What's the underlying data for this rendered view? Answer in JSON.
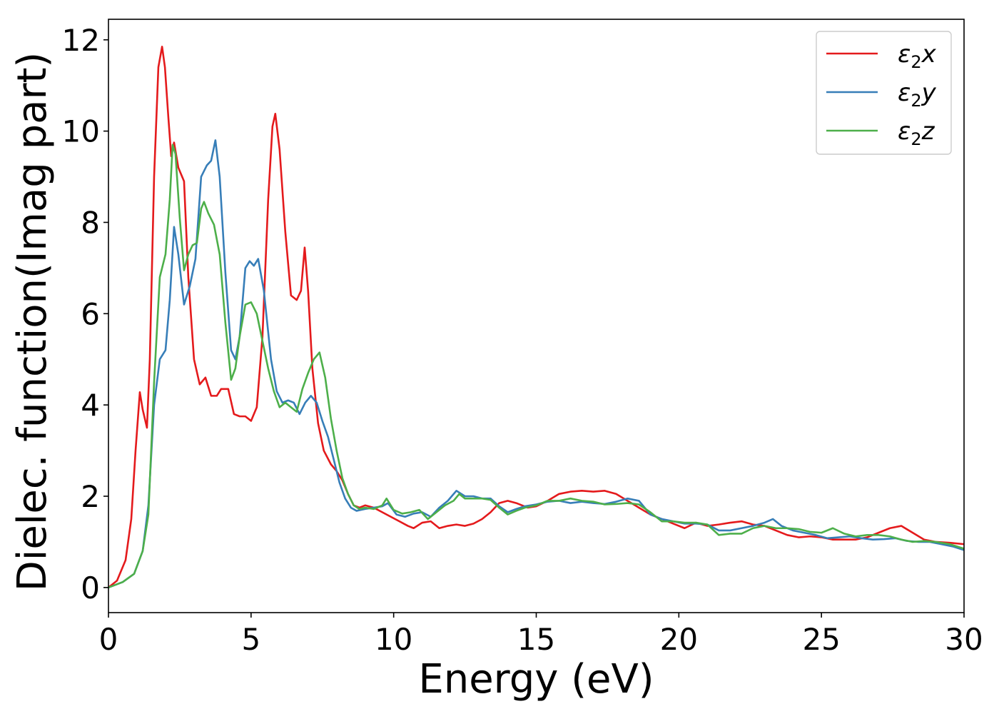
{
  "chart_data": {
    "type": "line",
    "xlabel": "Energy (eV)",
    "ylabel": "Dielec. function(Imag part)",
    "xlim": [
      0,
      30
    ],
    "ylim": [
      -0.55,
      12.45
    ],
    "xticks": [
      0,
      5,
      10,
      15,
      20,
      25,
      30
    ],
    "yticks": [
      0,
      2,
      4,
      6,
      8,
      10,
      12
    ],
    "grid": false,
    "legend_position": "top-right",
    "series": [
      {
        "name": "ε₂x",
        "legend": {
          "symbol": "ε",
          "sub": "2",
          "var": "x"
        },
        "color": "#e41a1c",
        "points": [
          [
            0,
            0
          ],
          [
            0.3,
            0.15
          ],
          [
            0.6,
            0.6
          ],
          [
            0.8,
            1.5
          ],
          [
            0.95,
            3.0
          ],
          [
            1.1,
            4.28
          ],
          [
            1.2,
            3.9
          ],
          [
            1.35,
            3.5
          ],
          [
            1.45,
            5.0
          ],
          [
            1.6,
            9.0
          ],
          [
            1.75,
            11.4
          ],
          [
            1.88,
            11.85
          ],
          [
            1.98,
            11.4
          ],
          [
            2.1,
            10.3
          ],
          [
            2.2,
            9.45
          ],
          [
            2.3,
            9.75
          ],
          [
            2.45,
            9.2
          ],
          [
            2.65,
            8.9
          ],
          [
            2.8,
            6.8
          ],
          [
            3.0,
            5.0
          ],
          [
            3.2,
            4.45
          ],
          [
            3.4,
            4.6
          ],
          [
            3.6,
            4.2
          ],
          [
            3.8,
            4.2
          ],
          [
            3.95,
            4.35
          ],
          [
            4.2,
            4.35
          ],
          [
            4.4,
            3.8
          ],
          [
            4.6,
            3.75
          ],
          [
            4.8,
            3.75
          ],
          [
            5.0,
            3.65
          ],
          [
            5.2,
            3.95
          ],
          [
            5.4,
            5.5
          ],
          [
            5.6,
            8.5
          ],
          [
            5.75,
            10.1
          ],
          [
            5.85,
            10.38
          ],
          [
            6.0,
            9.6
          ],
          [
            6.2,
            7.8
          ],
          [
            6.4,
            6.4
          ],
          [
            6.6,
            6.3
          ],
          [
            6.75,
            6.5
          ],
          [
            6.88,
            7.45
          ],
          [
            7.0,
            6.5
          ],
          [
            7.15,
            4.8
          ],
          [
            7.35,
            3.6
          ],
          [
            7.55,
            3.0
          ],
          [
            7.8,
            2.7
          ],
          [
            8.0,
            2.55
          ],
          [
            8.2,
            2.35
          ],
          [
            8.4,
            2.05
          ],
          [
            8.6,
            1.8
          ],
          [
            8.8,
            1.75
          ],
          [
            9.0,
            1.8
          ],
          [
            9.3,
            1.75
          ],
          [
            9.6,
            1.65
          ],
          [
            9.9,
            1.55
          ],
          [
            10.2,
            1.45
          ],
          [
            10.5,
            1.35
          ],
          [
            10.7,
            1.3
          ],
          [
            11.0,
            1.42
          ],
          [
            11.3,
            1.45
          ],
          [
            11.6,
            1.3
          ],
          [
            11.9,
            1.35
          ],
          [
            12.2,
            1.38
          ],
          [
            12.5,
            1.35
          ],
          [
            12.8,
            1.4
          ],
          [
            13.1,
            1.5
          ],
          [
            13.4,
            1.65
          ],
          [
            13.7,
            1.85
          ],
          [
            14.0,
            1.9
          ],
          [
            14.3,
            1.85
          ],
          [
            14.7,
            1.75
          ],
          [
            15.0,
            1.78
          ],
          [
            15.4,
            1.9
          ],
          [
            15.8,
            2.05
          ],
          [
            16.2,
            2.1
          ],
          [
            16.6,
            2.12
          ],
          [
            17.0,
            2.1
          ],
          [
            17.4,
            2.12
          ],
          [
            17.8,
            2.05
          ],
          [
            18.2,
            1.9
          ],
          [
            18.6,
            1.75
          ],
          [
            19.0,
            1.6
          ],
          [
            19.4,
            1.5
          ],
          [
            19.8,
            1.4
          ],
          [
            20.2,
            1.3
          ],
          [
            20.6,
            1.42
          ],
          [
            21.0,
            1.35
          ],
          [
            21.4,
            1.38
          ],
          [
            21.8,
            1.42
          ],
          [
            22.2,
            1.45
          ],
          [
            22.6,
            1.38
          ],
          [
            23.0,
            1.35
          ],
          [
            23.4,
            1.25
          ],
          [
            23.8,
            1.15
          ],
          [
            24.2,
            1.1
          ],
          [
            24.6,
            1.12
          ],
          [
            25.0,
            1.1
          ],
          [
            25.4,
            1.05
          ],
          [
            25.8,
            1.05
          ],
          [
            26.2,
            1.05
          ],
          [
            26.6,
            1.1
          ],
          [
            27.0,
            1.2
          ],
          [
            27.4,
            1.3
          ],
          [
            27.8,
            1.35
          ],
          [
            28.2,
            1.2
          ],
          [
            28.6,
            1.05
          ],
          [
            29.0,
            1.0
          ],
          [
            29.5,
            0.98
          ],
          [
            30.0,
            0.95
          ]
        ]
      },
      {
        "name": "ε₂y",
        "legend": {
          "symbol": "ε",
          "sub": "2",
          "var": "y"
        },
        "color": "#377eb8",
        "points": [
          [
            0,
            0
          ],
          [
            0.5,
            0.12
          ],
          [
            0.9,
            0.3
          ],
          [
            1.2,
            0.8
          ],
          [
            1.4,
            1.8
          ],
          [
            1.6,
            4.0
          ],
          [
            1.8,
            5.0
          ],
          [
            2.0,
            5.2
          ],
          [
            2.15,
            6.3
          ],
          [
            2.3,
            7.9
          ],
          [
            2.45,
            7.3
          ],
          [
            2.65,
            6.2
          ],
          [
            2.85,
            6.6
          ],
          [
            3.05,
            7.2
          ],
          [
            3.25,
            9.0
          ],
          [
            3.45,
            9.25
          ],
          [
            3.6,
            9.35
          ],
          [
            3.75,
            9.8
          ],
          [
            3.9,
            9.0
          ],
          [
            4.1,
            6.9
          ],
          [
            4.3,
            5.2
          ],
          [
            4.45,
            5.0
          ],
          [
            4.6,
            5.5
          ],
          [
            4.8,
            7.0
          ],
          [
            4.95,
            7.15
          ],
          [
            5.1,
            7.05
          ],
          [
            5.25,
            7.2
          ],
          [
            5.45,
            6.5
          ],
          [
            5.7,
            5.0
          ],
          [
            5.9,
            4.3
          ],
          [
            6.1,
            4.05
          ],
          [
            6.3,
            4.1
          ],
          [
            6.5,
            4.05
          ],
          [
            6.7,
            3.8
          ],
          [
            6.9,
            4.05
          ],
          [
            7.1,
            4.2
          ],
          [
            7.3,
            4.05
          ],
          [
            7.5,
            3.65
          ],
          [
            7.7,
            3.3
          ],
          [
            7.9,
            2.8
          ],
          [
            8.1,
            2.3
          ],
          [
            8.3,
            1.95
          ],
          [
            8.5,
            1.75
          ],
          [
            8.7,
            1.68
          ],
          [
            9.0,
            1.72
          ],
          [
            9.3,
            1.75
          ],
          [
            9.6,
            1.78
          ],
          [
            9.8,
            1.85
          ],
          [
            10.1,
            1.6
          ],
          [
            10.4,
            1.55
          ],
          [
            10.7,
            1.62
          ],
          [
            11.0,
            1.65
          ],
          [
            11.3,
            1.55
          ],
          [
            11.6,
            1.75
          ],
          [
            11.9,
            1.9
          ],
          [
            12.2,
            2.12
          ],
          [
            12.5,
            2.0
          ],
          [
            12.8,
            2.0
          ],
          [
            13.1,
            1.95
          ],
          [
            13.4,
            1.95
          ],
          [
            13.7,
            1.78
          ],
          [
            14.0,
            1.65
          ],
          [
            14.3,
            1.72
          ],
          [
            14.6,
            1.78
          ],
          [
            15.0,
            1.82
          ],
          [
            15.4,
            1.88
          ],
          [
            15.8,
            1.9
          ],
          [
            16.2,
            1.85
          ],
          [
            16.6,
            1.88
          ],
          [
            17.0,
            1.85
          ],
          [
            17.4,
            1.83
          ],
          [
            17.8,
            1.88
          ],
          [
            18.2,
            1.95
          ],
          [
            18.6,
            1.9
          ],
          [
            19.0,
            1.6
          ],
          [
            19.4,
            1.5
          ],
          [
            19.8,
            1.45
          ],
          [
            20.2,
            1.4
          ],
          [
            20.6,
            1.4
          ],
          [
            21.0,
            1.38
          ],
          [
            21.4,
            1.25
          ],
          [
            21.8,
            1.25
          ],
          [
            22.2,
            1.3
          ],
          [
            22.6,
            1.35
          ],
          [
            23.0,
            1.42
          ],
          [
            23.3,
            1.5
          ],
          [
            23.6,
            1.35
          ],
          [
            24.0,
            1.25
          ],
          [
            24.4,
            1.2
          ],
          [
            24.8,
            1.15
          ],
          [
            25.2,
            1.08
          ],
          [
            25.6,
            1.1
          ],
          [
            26.0,
            1.12
          ],
          [
            26.4,
            1.08
          ],
          [
            26.8,
            1.05
          ],
          [
            27.2,
            1.06
          ],
          [
            27.6,
            1.08
          ],
          [
            28.0,
            1.02
          ],
          [
            28.4,
            1.0
          ],
          [
            28.8,
            1.0
          ],
          [
            29.2,
            0.95
          ],
          [
            29.6,
            0.9
          ],
          [
            30.0,
            0.82
          ]
        ]
      },
      {
        "name": "ε₂z",
        "legend": {
          "symbol": "ε",
          "sub": "2",
          "var": "z"
        },
        "color": "#4daf4a",
        "points": [
          [
            0,
            0
          ],
          [
            0.5,
            0.12
          ],
          [
            0.9,
            0.3
          ],
          [
            1.2,
            0.8
          ],
          [
            1.4,
            1.6
          ],
          [
            1.6,
            4.5
          ],
          [
            1.8,
            6.8
          ],
          [
            2.0,
            7.3
          ],
          [
            2.15,
            8.5
          ],
          [
            2.25,
            9.7
          ],
          [
            2.35,
            9.5
          ],
          [
            2.5,
            8.1
          ],
          [
            2.65,
            6.95
          ],
          [
            2.8,
            7.3
          ],
          [
            2.95,
            7.5
          ],
          [
            3.1,
            7.55
          ],
          [
            3.25,
            8.3
          ],
          [
            3.35,
            8.45
          ],
          [
            3.5,
            8.2
          ],
          [
            3.7,
            7.95
          ],
          [
            3.9,
            7.3
          ],
          [
            4.1,
            5.8
          ],
          [
            4.3,
            4.55
          ],
          [
            4.45,
            4.8
          ],
          [
            4.6,
            5.5
          ],
          [
            4.8,
            6.2
          ],
          [
            5.0,
            6.25
          ],
          [
            5.2,
            6.0
          ],
          [
            5.4,
            5.4
          ],
          [
            5.6,
            4.8
          ],
          [
            5.8,
            4.3
          ],
          [
            6.0,
            3.95
          ],
          [
            6.2,
            4.05
          ],
          [
            6.4,
            3.95
          ],
          [
            6.6,
            3.85
          ],
          [
            6.8,
            4.35
          ],
          [
            7.0,
            4.7
          ],
          [
            7.2,
            5.0
          ],
          [
            7.4,
            5.15
          ],
          [
            7.6,
            4.6
          ],
          [
            7.8,
            3.7
          ],
          [
            8.0,
            3.0
          ],
          [
            8.2,
            2.4
          ],
          [
            8.4,
            2.05
          ],
          [
            8.6,
            1.8
          ],
          [
            8.8,
            1.72
          ],
          [
            9.0,
            1.75
          ],
          [
            9.3,
            1.72
          ],
          [
            9.6,
            1.8
          ],
          [
            9.75,
            1.95
          ],
          [
            10.0,
            1.7
          ],
          [
            10.3,
            1.62
          ],
          [
            10.6,
            1.65
          ],
          [
            10.9,
            1.7
          ],
          [
            11.2,
            1.5
          ],
          [
            11.5,
            1.65
          ],
          [
            11.8,
            1.8
          ],
          [
            12.1,
            1.9
          ],
          [
            12.3,
            2.05
          ],
          [
            12.5,
            1.95
          ],
          [
            12.8,
            1.95
          ],
          [
            13.1,
            1.95
          ],
          [
            13.4,
            1.92
          ],
          [
            13.7,
            1.75
          ],
          [
            14.0,
            1.6
          ],
          [
            14.3,
            1.68
          ],
          [
            14.6,
            1.75
          ],
          [
            15.0,
            1.8
          ],
          [
            15.4,
            1.9
          ],
          [
            15.8,
            1.9
          ],
          [
            16.2,
            1.95
          ],
          [
            16.6,
            1.9
          ],
          [
            17.0,
            1.88
          ],
          [
            17.4,
            1.82
          ],
          [
            17.8,
            1.83
          ],
          [
            18.2,
            1.85
          ],
          [
            18.6,
            1.82
          ],
          [
            19.0,
            1.65
          ],
          [
            19.4,
            1.45
          ],
          [
            19.8,
            1.45
          ],
          [
            20.2,
            1.42
          ],
          [
            20.6,
            1.42
          ],
          [
            21.0,
            1.38
          ],
          [
            21.4,
            1.15
          ],
          [
            21.8,
            1.18
          ],
          [
            22.2,
            1.18
          ],
          [
            22.6,
            1.3
          ],
          [
            23.0,
            1.35
          ],
          [
            23.4,
            1.3
          ],
          [
            23.8,
            1.3
          ],
          [
            24.2,
            1.28
          ],
          [
            24.6,
            1.22
          ],
          [
            25.0,
            1.2
          ],
          [
            25.4,
            1.3
          ],
          [
            25.8,
            1.18
          ],
          [
            26.2,
            1.12
          ],
          [
            26.6,
            1.15
          ],
          [
            27.0,
            1.15
          ],
          [
            27.4,
            1.12
          ],
          [
            27.8,
            1.05
          ],
          [
            28.2,
            1.0
          ],
          [
            28.6,
            1.02
          ],
          [
            29.0,
            1.0
          ],
          [
            29.5,
            0.95
          ],
          [
            30.0,
            0.85
          ]
        ]
      }
    ]
  }
}
